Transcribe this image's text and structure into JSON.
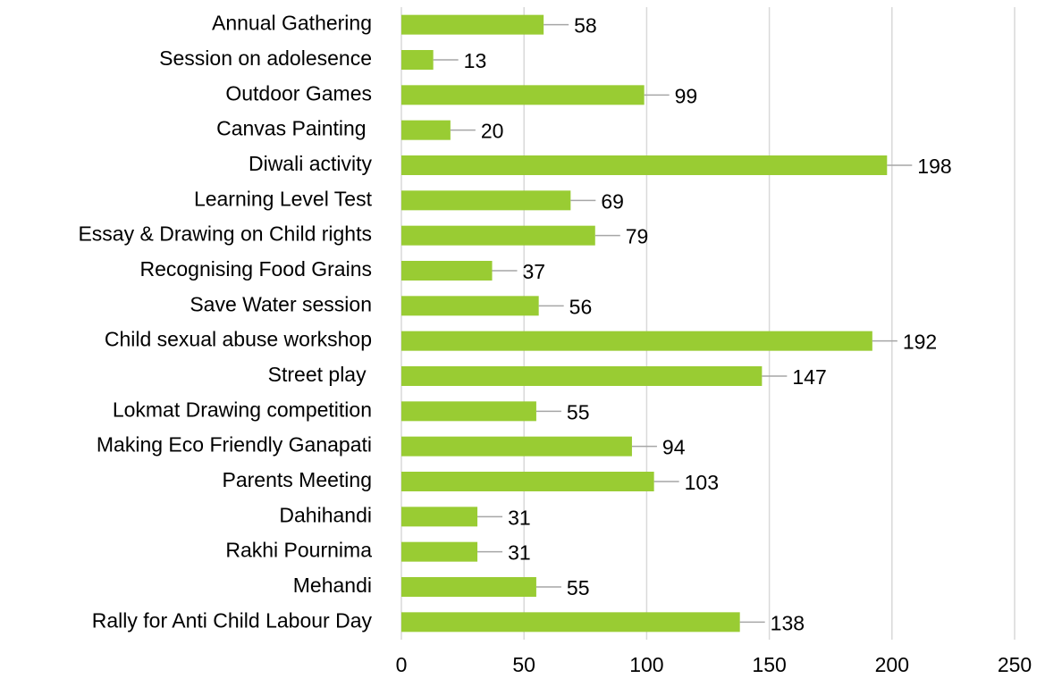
{
  "chart_data": {
    "type": "barh",
    "categories": [
      "Annual Gathering",
      "Session on adolesence",
      "Outdoor Games",
      "Canvas Painting ",
      "Diwali activity",
      "Learning Level Test",
      "Essay & Drawing on Child rights",
      "Recognising Food Grains",
      "Save Water session",
      "Child sexual abuse workshop",
      "Street play ",
      "Lokmat Drawing competition",
      "Making Eco Friendly Ganapati",
      "Parents Meeting",
      "Dahihandi",
      "Rakhi Pournima",
      "Mehandi",
      "Rally for Anti Child Labour Day"
    ],
    "values": [
      58,
      13,
      99,
      20,
      198,
      69,
      79,
      37,
      56,
      192,
      147,
      55,
      94,
      103,
      31,
      31,
      55,
      138
    ],
    "color": "#99cc33",
    "xlim": [
      0,
      250
    ],
    "xticks": [
      0,
      50,
      100,
      150,
      200,
      250
    ],
    "grid": true
  }
}
